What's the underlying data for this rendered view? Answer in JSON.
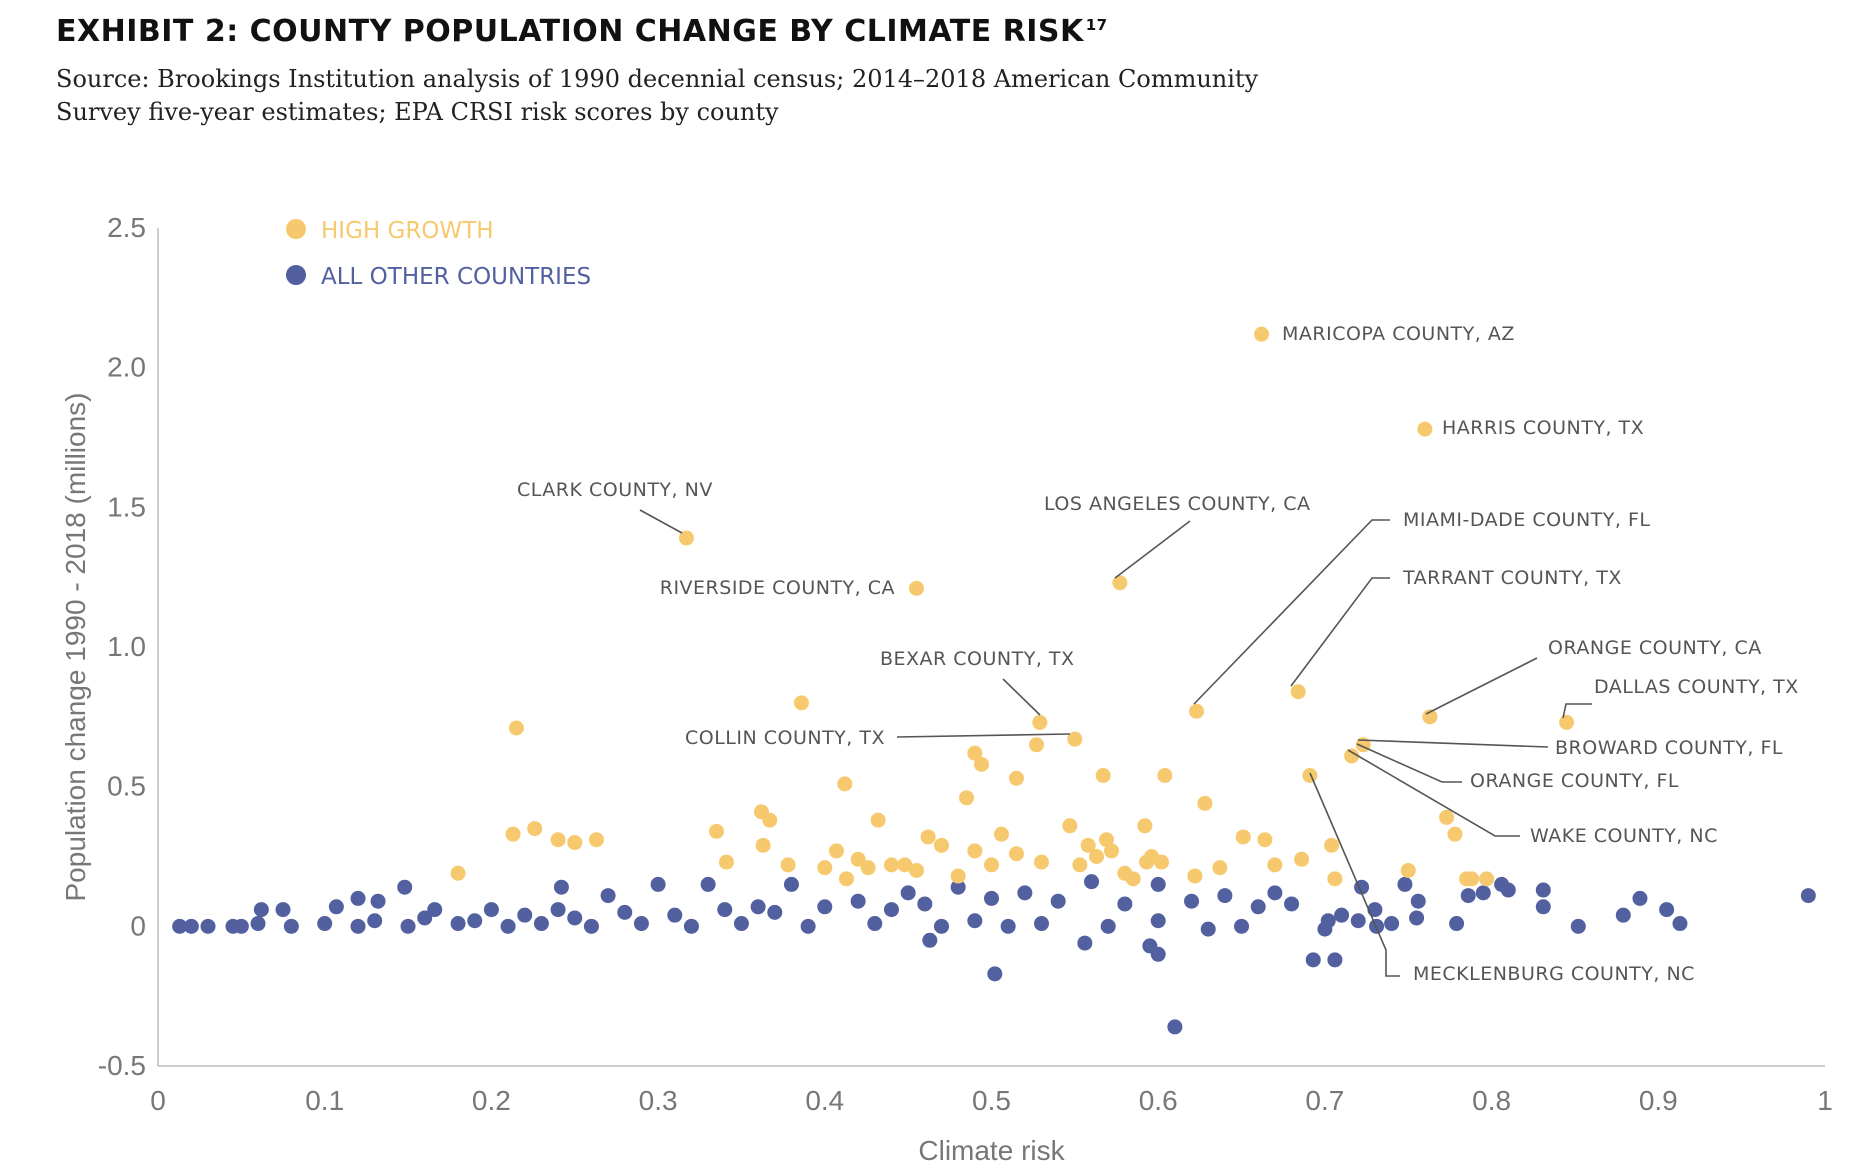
{
  "header": {
    "title": "EXHIBIT 2: COUNTY POPULATION CHANGE BY CLIMATE RISK",
    "title_footnote": "17",
    "source_line1": "Source: Brookings Institution analysis of 1990 decennial census; 2014–2018 American Community",
    "source_line2": "Survey five-year estimates; EPA CRSI risk scores by county"
  },
  "chart_data": {
    "type": "scatter",
    "xlabel": "Climate risk",
    "ylabel": "Population change 1990 - 2018 (millions)",
    "xlim": [
      0,
      1
    ],
    "ylim": [
      -0.5,
      2.5
    ],
    "x_ticks": [
      "0",
      "0.1",
      "0.2",
      "0.3",
      "0.4",
      "0.5",
      "0.6",
      "0.7",
      "0.8",
      "0.9",
      "1"
    ],
    "y_ticks": [
      "2.5",
      "2.0",
      "1.5",
      "1.0",
      "0.5",
      "0",
      "-0.5"
    ],
    "grid": false,
    "legend_placement": "top-left",
    "colors": {
      "high_growth": "#F6C96E",
      "other": "#52609F"
    },
    "series": [
      {
        "name": "HIGH GROWTH",
        "points": [
          [
            0.662,
            2.12
          ],
          [
            0.76,
            1.78
          ],
          [
            0.317,
            1.39
          ],
          [
            0.455,
            1.21
          ],
          [
            0.577,
            1.23
          ],
          [
            0.529,
            0.73
          ],
          [
            0.55,
            0.67
          ],
          [
            0.623,
            0.77
          ],
          [
            0.684,
            0.84
          ],
          [
            0.763,
            0.75
          ],
          [
            0.845,
            0.73
          ],
          [
            0.723,
            0.65
          ],
          [
            0.716,
            0.61
          ],
          [
            0.691,
            0.54
          ],
          [
            0.215,
            0.71
          ],
          [
            0.386,
            0.8
          ],
          [
            0.49,
            0.62
          ],
          [
            0.494,
            0.58
          ],
          [
            0.515,
            0.53
          ],
          [
            0.527,
            0.65
          ],
          [
            0.412,
            0.51
          ],
          [
            0.567,
            0.54
          ],
          [
            0.604,
            0.54
          ],
          [
            0.628,
            0.44
          ],
          [
            0.485,
            0.46
          ],
          [
            0.547,
            0.36
          ],
          [
            0.592,
            0.36
          ],
          [
            0.651,
            0.32
          ],
          [
            0.664,
            0.31
          ],
          [
            0.773,
            0.39
          ],
          [
            0.778,
            0.33
          ],
          [
            0.18,
            0.19
          ],
          [
            0.213,
            0.33
          ],
          [
            0.226,
            0.35
          ],
          [
            0.24,
            0.31
          ],
          [
            0.25,
            0.3
          ],
          [
            0.263,
            0.31
          ],
          [
            0.335,
            0.34
          ],
          [
            0.341,
            0.23
          ],
          [
            0.362,
            0.41
          ],
          [
            0.367,
            0.38
          ],
          [
            0.363,
            0.29
          ],
          [
            0.378,
            0.22
          ],
          [
            0.4,
            0.21
          ],
          [
            0.407,
            0.27
          ],
          [
            0.413,
            0.17
          ],
          [
            0.42,
            0.24
          ],
          [
            0.426,
            0.21
          ],
          [
            0.432,
            0.38
          ],
          [
            0.44,
            0.22
          ],
          [
            0.448,
            0.22
          ],
          [
            0.455,
            0.2
          ],
          [
            0.462,
            0.32
          ],
          [
            0.47,
            0.29
          ],
          [
            0.48,
            0.18
          ],
          [
            0.49,
            0.27
          ],
          [
            0.5,
            0.22
          ],
          [
            0.506,
            0.33
          ],
          [
            0.515,
            0.26
          ],
          [
            0.53,
            0.23
          ],
          [
            0.553,
            0.22
          ],
          [
            0.558,
            0.29
          ],
          [
            0.563,
            0.25
          ],
          [
            0.569,
            0.31
          ],
          [
            0.572,
            0.27
          ],
          [
            0.58,
            0.19
          ],
          [
            0.585,
            0.17
          ],
          [
            0.593,
            0.23
          ],
          [
            0.596,
            0.25
          ],
          [
            0.602,
            0.23
          ],
          [
            0.622,
            0.18
          ],
          [
            0.637,
            0.21
          ],
          [
            0.67,
            0.22
          ],
          [
            0.686,
            0.24
          ],
          [
            0.704,
            0.29
          ],
          [
            0.706,
            0.17
          ],
          [
            0.75,
            0.2
          ],
          [
            0.785,
            0.17
          ],
          [
            0.788,
            0.17
          ],
          [
            0.797,
            0.17
          ]
        ]
      },
      {
        "name": "ALL OTHER COUNTRIES",
        "points": [
          [
            0.99,
            0.11
          ],
          [
            0.889,
            0.1
          ],
          [
            0.879,
            0.04
          ],
          [
            0.852,
            0.0
          ],
          [
            0.831,
            0.13
          ],
          [
            0.831,
            0.07
          ],
          [
            0.913,
            0.01
          ],
          [
            0.905,
            0.06
          ],
          [
            0.779,
            0.01
          ],
          [
            0.806,
            0.15
          ],
          [
            0.81,
            0.13
          ],
          [
            0.795,
            0.12
          ],
          [
            0.786,
            0.11
          ],
          [
            0.756,
            0.09
          ],
          [
            0.755,
            0.03
          ],
          [
            0.748,
            0.15
          ],
          [
            0.73,
            0.06
          ],
          [
            0.731,
            0.0
          ],
          [
            0.722,
            0.14
          ],
          [
            0.702,
            0.02
          ],
          [
            0.693,
            -0.12
          ],
          [
            0.706,
            -0.12
          ],
          [
            0.61,
            -0.36
          ],
          [
            0.502,
            -0.17
          ],
          [
            0.595,
            -0.07
          ],
          [
            0.6,
            -0.1
          ],
          [
            0.556,
            -0.06
          ],
          [
            0.463,
            -0.05
          ],
          [
            0.013,
            0.0
          ],
          [
            0.02,
            0.0
          ],
          [
            0.03,
            0.0
          ],
          [
            0.045,
            0.0
          ],
          [
            0.062,
            0.06
          ],
          [
            0.075,
            0.06
          ],
          [
            0.107,
            0.07
          ],
          [
            0.12,
            0.1
          ],
          [
            0.132,
            0.09
          ],
          [
            0.148,
            0.14
          ],
          [
            0.166,
            0.06
          ],
          [
            0.2,
            0.06
          ],
          [
            0.24,
            0.06
          ],
          [
            0.242,
            0.14
          ],
          [
            0.27,
            0.11
          ],
          [
            0.3,
            0.15
          ],
          [
            0.33,
            0.15
          ],
          [
            0.36,
            0.07
          ],
          [
            0.38,
            0.15
          ],
          [
            0.42,
            0.09
          ],
          [
            0.45,
            0.12
          ],
          [
            0.48,
            0.14
          ],
          [
            0.52,
            0.12
          ],
          [
            0.56,
            0.16
          ],
          [
            0.6,
            0.15
          ],
          [
            0.64,
            0.11
          ],
          [
            0.67,
            0.12
          ],
          [
            0.68,
            0.08
          ],
          [
            0.66,
            0.07
          ],
          [
            0.62,
            0.09
          ],
          [
            0.58,
            0.08
          ],
          [
            0.54,
            0.09
          ],
          [
            0.5,
            0.1
          ],
          [
            0.46,
            0.08
          ],
          [
            0.44,
            0.06
          ],
          [
            0.4,
            0.07
          ],
          [
            0.37,
            0.05
          ],
          [
            0.34,
            0.06
          ],
          [
            0.31,
            0.04
          ],
          [
            0.28,
            0.05
          ],
          [
            0.25,
            0.03
          ],
          [
            0.22,
            0.04
          ],
          [
            0.19,
            0.02
          ],
          [
            0.16,
            0.03
          ],
          [
            0.13,
            0.02
          ],
          [
            0.1,
            0.01
          ],
          [
            0.08,
            0.0
          ],
          [
            0.06,
            0.01
          ],
          [
            0.05,
            0.0
          ],
          [
            0.71,
            0.04
          ],
          [
            0.72,
            0.02
          ],
          [
            0.74,
            0.01
          ],
          [
            0.7,
            -0.01
          ],
          [
            0.65,
            0.0
          ],
          [
            0.63,
            -0.01
          ],
          [
            0.6,
            0.02
          ],
          [
            0.57,
            0.0
          ],
          [
            0.53,
            0.01
          ],
          [
            0.51,
            0.0
          ],
          [
            0.49,
            0.02
          ],
          [
            0.47,
            0.0
          ],
          [
            0.43,
            0.01
          ],
          [
            0.39,
            0.0
          ],
          [
            0.35,
            0.01
          ],
          [
            0.32,
            0.0
          ],
          [
            0.29,
            0.01
          ],
          [
            0.26,
            0.0
          ],
          [
            0.23,
            0.01
          ],
          [
            0.21,
            0.0
          ],
          [
            0.18,
            0.01
          ],
          [
            0.15,
            0.0
          ],
          [
            0.12,
            0.0
          ]
        ]
      }
    ],
    "annotations": [
      {
        "text": "MARICOPA COUNTY, AZ",
        "x": 0.662,
        "y": 2.12
      },
      {
        "text": "HARRIS COUNTY, TX",
        "x": 0.76,
        "y": 1.78
      },
      {
        "text": "CLARK COUNTY, NV",
        "x": 0.317,
        "y": 1.39
      },
      {
        "text": "RIVERSIDE COUNTY, CA",
        "x": 0.455,
        "y": 1.21
      },
      {
        "text": "LOS ANGELES COUNTY, CA",
        "x": 0.577,
        "y": 1.23
      },
      {
        "text": "MIAMI-DADE COUNTY, FL",
        "x": 0.623,
        "y": 0.77
      },
      {
        "text": "TARRANT COUNTY, TX",
        "x": 0.684,
        "y": 0.84
      },
      {
        "text": "BEXAR COUNTY, TX",
        "x": 0.529,
        "y": 0.73
      },
      {
        "text": "COLLIN COUNTY, TX",
        "x": 0.55,
        "y": 0.67
      },
      {
        "text": "ORANGE COUNTY, CA",
        "x": 0.763,
        "y": 0.75
      },
      {
        "text": "DALLAS COUNTY, TX",
        "x": 0.845,
        "y": 0.73
      },
      {
        "text": "BROWARD COUNTY, FL",
        "x": 0.723,
        "y": 0.65
      },
      {
        "text": "ORANGE COUNTY, FL",
        "x": 0.718,
        "y": 0.63
      },
      {
        "text": "WAKE COUNTY, NC",
        "x": 0.716,
        "y": 0.61
      },
      {
        "text": "MECKLENBURG COUNTY, NC",
        "x": 0.691,
        "y": 0.54
      }
    ]
  }
}
